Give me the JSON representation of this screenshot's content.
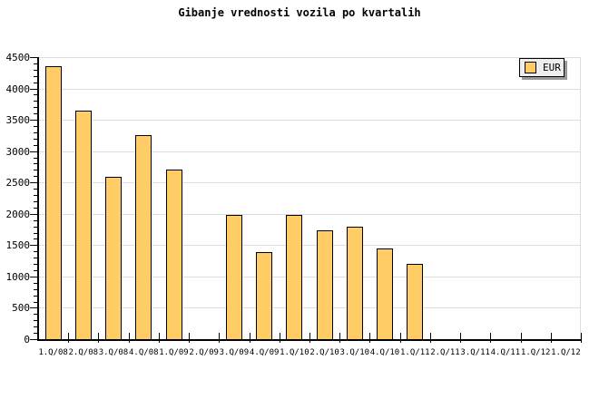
{
  "title": "Gibanje vrednosti vozila po kvartalih",
  "legend": {
    "label": "EUR",
    "swatch_color": "#FFCC66",
    "position": "top-right"
  },
  "colors": {
    "background": "#FFFFFF",
    "bar_fill": "#FFCC66",
    "bar_border": "#000000",
    "gridline": "#DDDDDD",
    "axis": "#000000",
    "text": "#000000",
    "legend_bg": "#EEEEEE",
    "legend_shadow": "#999999"
  },
  "chart_data": {
    "type": "bar",
    "title": "Gibanje vrednosti vozila po kvartalih",
    "categories": [
      "1.Q/08",
      "2.Q/08",
      "3.Q/08",
      "4.Q/08",
      "1.Q/09",
      "2.Q/09",
      "3.Q/09",
      "4.Q/09",
      "1.Q/10",
      "2.Q/10",
      "3.Q/10",
      "4.Q/10",
      "1.Q/11",
      "2.Q/11",
      "3.Q/11",
      "4.Q/11",
      "1.Q/12",
      "1.Q/12"
    ],
    "series": [
      {
        "name": "EUR",
        "values": [
          4350,
          3640,
          2590,
          3250,
          2710,
          0,
          1980,
          1390,
          1980,
          1730,
          1790,
          1450,
          1200,
          0,
          0,
          0,
          0,
          0
        ]
      }
    ],
    "xlabel": "",
    "ylabel": "",
    "ylim": [
      0,
      4500
    ],
    "yticks": [
      0,
      500,
      1000,
      1500,
      2000,
      2500,
      3000,
      3500,
      4000,
      4500
    ],
    "ytick_step": 500,
    "y_minor_tick_step": 100,
    "grid": "horizontal",
    "legend_position": "top-right"
  }
}
